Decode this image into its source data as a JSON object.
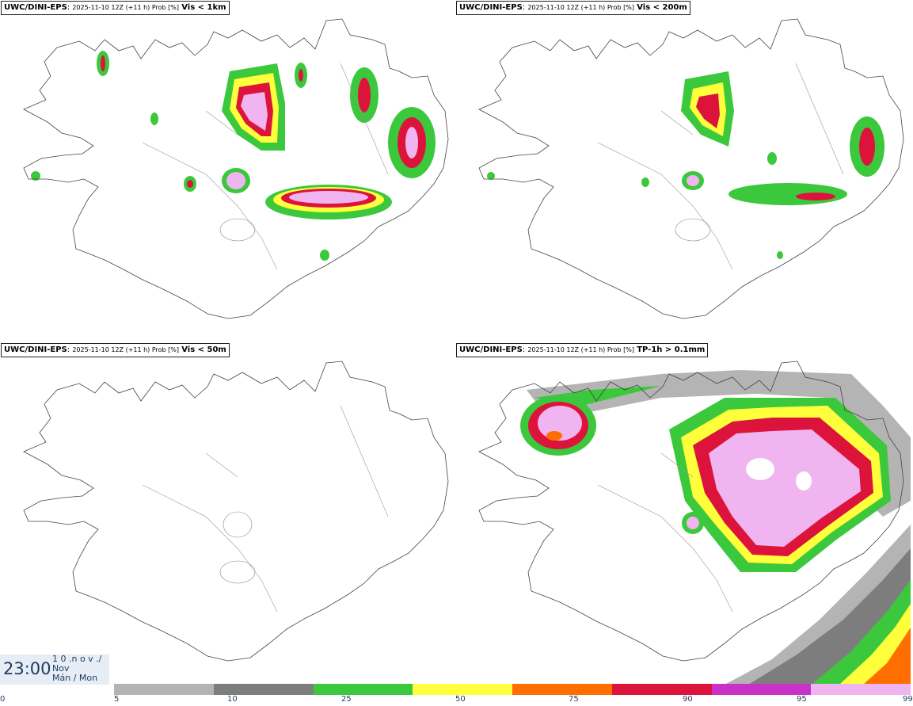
{
  "panels": [
    {
      "source": "UWC/DINI-EPS",
      "meta": "2025-11-10 12Z (+11 h) Prob [%]",
      "variable": "Vis < 1km"
    },
    {
      "source": "UWC/DINI-EPS",
      "meta": "2025-11-10 12Z (+11 h) Prob [%]",
      "variable": "Vis < 200m"
    },
    {
      "source": "UWC/DINI-EPS",
      "meta": "2025-11-10 12Z (+11 h) Prob [%]",
      "variable": "Vis < 50m"
    },
    {
      "source": "UWC/DINI-EPS",
      "meta": "2025-11-10 12Z (+11 h) Prob [%]",
      "variable": "TP-1h > 0.1mm"
    }
  ],
  "time": {
    "clock": "23:00",
    "day_line": "1 0 .n o v ./",
    "month": "Nov",
    "weekday": "Mán / Mon"
  },
  "colorbar": {
    "colors": [
      "#b4b4b4",
      "#7d7d7d",
      "#3cc83c",
      "#ffff3c",
      "#ff6e00",
      "#dc143c",
      "#c832c8",
      "#f0b4f0"
    ],
    "ticks": [
      "0",
      "5",
      "10",
      "25",
      "50",
      "75",
      "90",
      "95",
      "99"
    ]
  }
}
